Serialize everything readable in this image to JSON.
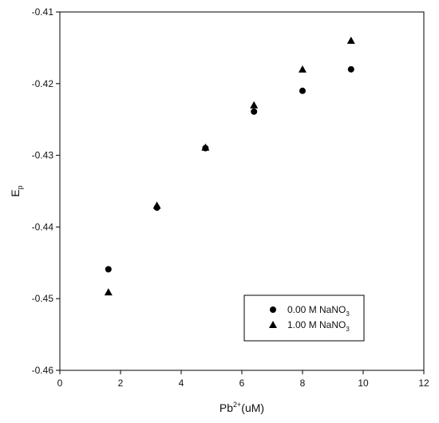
{
  "chart_data": {
    "type": "scatter",
    "title": "",
    "xlabel": {
      "base": "Pb",
      "sup": "2+",
      "rest": "(uM)"
    },
    "ylabel": {
      "base": "E",
      "sub": "p"
    },
    "xlim": [
      0,
      12
    ],
    "ylim": [
      -0.46,
      -0.41
    ],
    "xticks": [
      0,
      2,
      4,
      6,
      8,
      10,
      12
    ],
    "xtick_labels": [
      "0",
      "2",
      "4",
      "6",
      "8",
      "10",
      "12"
    ],
    "yticks": [
      -0.46,
      -0.45,
      -0.44,
      -0.43,
      -0.42,
      -0.41
    ],
    "ytick_labels": [
      "-0.46",
      "-0.45",
      "-0.44",
      "-0.43",
      "-0.42",
      "-0.41"
    ],
    "grid": false,
    "legend_position": "bottom-right",
    "series": [
      {
        "name": {
          "base": "0.00 M NaNO",
          "sub": "3"
        },
        "marker": "circle",
        "color": "#000000",
        "x": [
          1.6,
          3.2,
          4.8,
          6.4,
          8.0,
          9.6
        ],
        "y": [
          -0.4459,
          -0.4373,
          -0.429,
          -0.4239,
          -0.421,
          -0.418
        ]
      },
      {
        "name": {
          "base": "1.00 M NaNO",
          "sub": "3"
        },
        "marker": "triangle",
        "color": "#000000",
        "x": [
          1.6,
          3.2,
          4.8,
          6.4,
          8.0,
          9.6
        ],
        "y": [
          -0.4491,
          -0.437,
          -0.4289,
          -0.423,
          -0.418,
          -0.414
        ]
      }
    ]
  }
}
